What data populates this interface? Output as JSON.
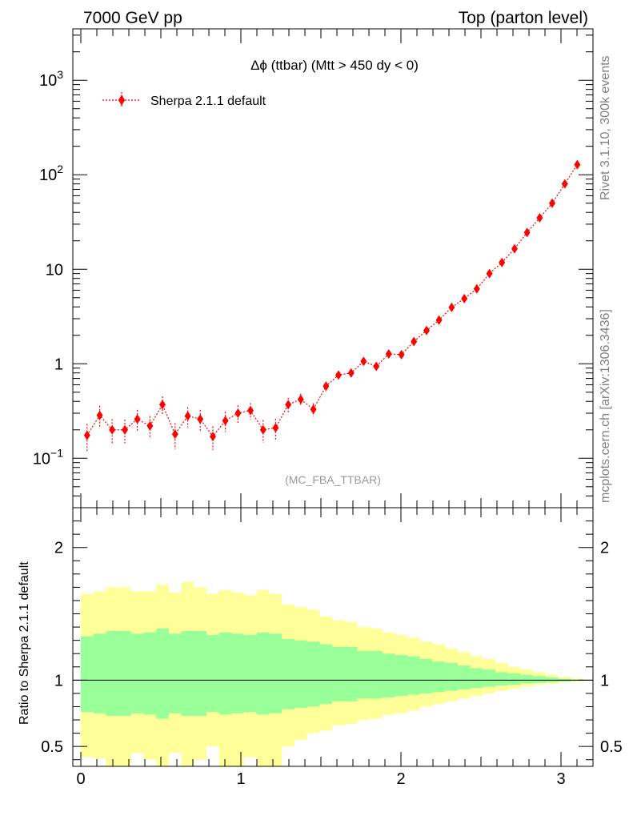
{
  "header": {
    "left": "7000 GeV pp",
    "right": "Top (parton level)"
  },
  "side_labels": {
    "rivet": "Rivet 3.1.10,  300k events",
    "mcplots": "mcplots.cern.ch [arXiv:1306.3436]"
  },
  "colors": {
    "mc": "#ff0000",
    "band_outer": "#ffff99",
    "band_inner": "#99ff99",
    "axis": "#000000",
    "watermark": "#999999",
    "side_text": "#808080"
  },
  "chart_data": [
    {
      "type": "scatter",
      "title": "Δϕ (ttbar) (Mtt > 450 dy < 0)",
      "watermark": "(MC_FBA_TTBAR)",
      "yscale": "log",
      "xlim": [
        -0.05,
        3.2
      ],
      "ylim": [
        0.03,
        3500
      ],
      "yticks": [
        {
          "value": 0.1,
          "base": "10",
          "exp": "−1"
        },
        {
          "value": 1,
          "base": "1",
          "exp": ""
        },
        {
          "value": 10,
          "base": "10",
          "exp": ""
        },
        {
          "value": 100,
          "base": "10",
          "exp": "2"
        },
        {
          "value": 1000,
          "base": "10",
          "exp": "3"
        }
      ],
      "legend": {
        "position": "top-left",
        "label": "Sherpa 2.1.1 default"
      },
      "series": [
        {
          "name": "Sherpa 2.1.1 default",
          "x": [
            0.039,
            0.118,
            0.196,
            0.275,
            0.353,
            0.432,
            0.51,
            0.589,
            0.668,
            0.746,
            0.825,
            0.903,
            0.982,
            1.06,
            1.139,
            1.217,
            1.296,
            1.374,
            1.453,
            1.532,
            1.61,
            1.689,
            1.767,
            1.846,
            1.924,
            2.003,
            2.081,
            2.16,
            2.238,
            2.317,
            2.396,
            2.474,
            2.553,
            2.631,
            2.71,
            2.788,
            2.867,
            2.945,
            3.024,
            3.102
          ],
          "y": [
            0.175,
            0.285,
            0.2,
            0.2,
            0.26,
            0.22,
            0.37,
            0.18,
            0.28,
            0.26,
            0.17,
            0.25,
            0.3,
            0.32,
            0.2,
            0.21,
            0.37,
            0.42,
            0.33,
            0.58,
            0.76,
            0.8,
            1.06,
            0.94,
            1.27,
            1.25,
            1.72,
            2.25,
            2.9,
            3.95,
            4.9,
            6.2,
            9.0,
            11.8,
            16.5,
            24.5,
            35,
            50,
            80,
            128
          ],
          "err": [
            0.32,
            0.26,
            0.3,
            0.28,
            0.25,
            0.27,
            0.22,
            0.31,
            0.24,
            0.25,
            0.28,
            0.24,
            0.21,
            0.2,
            0.27,
            0.25,
            0.18,
            0.15,
            0.16,
            0.12,
            0.1,
            0.1,
            0.085,
            0.09,
            0.075,
            0.075,
            0.065,
            0.055,
            0.05,
            0.045,
            0.04,
            0.035,
            0.03,
            0.028,
            0.024,
            0.02,
            0.018,
            0.015,
            0.012,
            0.01
          ]
        }
      ]
    },
    {
      "type": "area",
      "ylabel": "Ratio to Sherpa 2.1.1 default",
      "xlim": [
        -0.05,
        3.2
      ],
      "ylim": [
        0.35,
        2.3
      ],
      "yticks": [
        0.5,
        1,
        2
      ],
      "xticks": [
        0,
        1,
        2,
        3
      ],
      "reference_line": 1,
      "bin_edges": [
        0,
        0.0785,
        0.157,
        0.2355,
        0.314,
        0.3925,
        0.471,
        0.5495,
        0.628,
        0.7065,
        0.785,
        0.8635,
        0.942,
        1.0205,
        1.099,
        1.1775,
        1.256,
        1.3345,
        1.413,
        1.4915,
        1.57,
        1.6485,
        1.727,
        1.8055,
        1.884,
        1.9625,
        2.041,
        2.1195,
        2.198,
        2.2765,
        2.355,
        2.4335,
        2.512,
        2.5905,
        2.669,
        2.7475,
        2.826,
        2.9045,
        2.983,
        3.0615,
        3.14
      ],
      "inner_band": {
        "lower": [
          0.76,
          0.75,
          0.73,
          0.73,
          0.75,
          0.74,
          0.71,
          0.75,
          0.73,
          0.73,
          0.76,
          0.74,
          0.75,
          0.76,
          0.74,
          0.75,
          0.78,
          0.79,
          0.8,
          0.82,
          0.84,
          0.84,
          0.86,
          0.86,
          0.87,
          0.88,
          0.89,
          0.9,
          0.91,
          0.92,
          0.93,
          0.94,
          0.95,
          0.96,
          0.965,
          0.975,
          0.98,
          0.985,
          0.99,
          0.995
        ],
        "upper": [
          1.33,
          1.35,
          1.37,
          1.37,
          1.35,
          1.36,
          1.39,
          1.35,
          1.37,
          1.37,
          1.34,
          1.36,
          1.35,
          1.34,
          1.36,
          1.35,
          1.31,
          1.3,
          1.29,
          1.27,
          1.25,
          1.25,
          1.22,
          1.22,
          1.2,
          1.19,
          1.18,
          1.16,
          1.14,
          1.13,
          1.11,
          1.09,
          1.08,
          1.06,
          1.05,
          1.04,
          1.03,
          1.02,
          1.01,
          1.005
        ]
      },
      "outer_band": {
        "lower": [
          0.42,
          0.41,
          0.35,
          0.35,
          0.45,
          0.4,
          0.35,
          0.45,
          0.35,
          0.4,
          0.5,
          0.35,
          0.35,
          0.42,
          0.35,
          0.35,
          0.5,
          0.55,
          0.6,
          0.62,
          0.66,
          0.67,
          0.7,
          0.71,
          0.74,
          0.75,
          0.77,
          0.8,
          0.82,
          0.84,
          0.86,
          0.88,
          0.9,
          0.92,
          0.935,
          0.95,
          0.965,
          0.975,
          0.985,
          0.99
        ],
        "upper": [
          1.65,
          1.67,
          1.7,
          1.7,
          1.67,
          1.67,
          1.72,
          1.66,
          1.74,
          1.7,
          1.65,
          1.68,
          1.66,
          1.64,
          1.68,
          1.65,
          1.57,
          1.55,
          1.53,
          1.48,
          1.45,
          1.44,
          1.4,
          1.39,
          1.36,
          1.34,
          1.32,
          1.29,
          1.27,
          1.24,
          1.21,
          1.18,
          1.16,
          1.13,
          1.1,
          1.08,
          1.06,
          1.04,
          1.025,
          1.012
        ]
      }
    }
  ]
}
